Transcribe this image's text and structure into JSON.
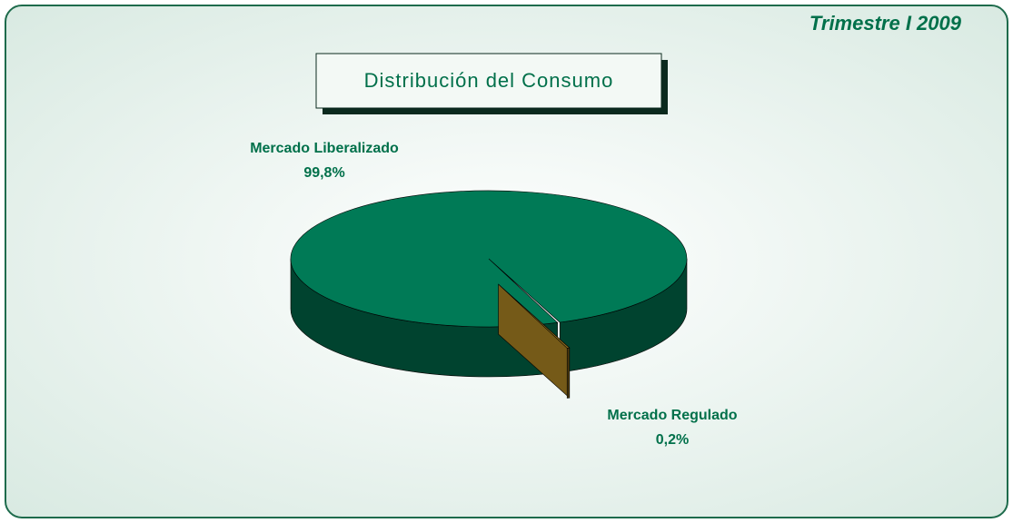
{
  "chart_data": {
    "type": "pie3d",
    "title": "Distribución del Consumo",
    "subtitle": "Trimestre I 2009",
    "categories": [
      "Mercado Liberalizado",
      "Mercado Regulado"
    ],
    "values": [
      99.8,
      0.2
    ],
    "value_labels": [
      "99,8%",
      "0,2%"
    ],
    "colors": [
      "#007a56",
      "#8a6a1c"
    ]
  }
}
